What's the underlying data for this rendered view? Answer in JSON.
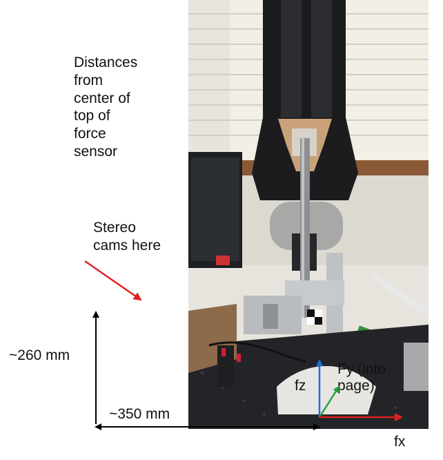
{
  "annotations": {
    "distances_lines": [
      "Distances",
      "from",
      "center of",
      "top of",
      "force",
      "sensor"
    ],
    "stereo_lines": [
      "Stereo",
      "cams here"
    ],
    "height_label": "~260 mm",
    "width_label": "~350 mm",
    "axis_fz": "fz",
    "axis_fy_lines": [
      "Fy (into",
      "page)"
    ],
    "axis_fx": "fx"
  },
  "colors": {
    "stereo_arrow": "#e02020",
    "axis_z": "#1e6fd9",
    "axis_y": "#21a33a",
    "axis_x": "#e02020",
    "dimension_arrows": "#000000"
  }
}
